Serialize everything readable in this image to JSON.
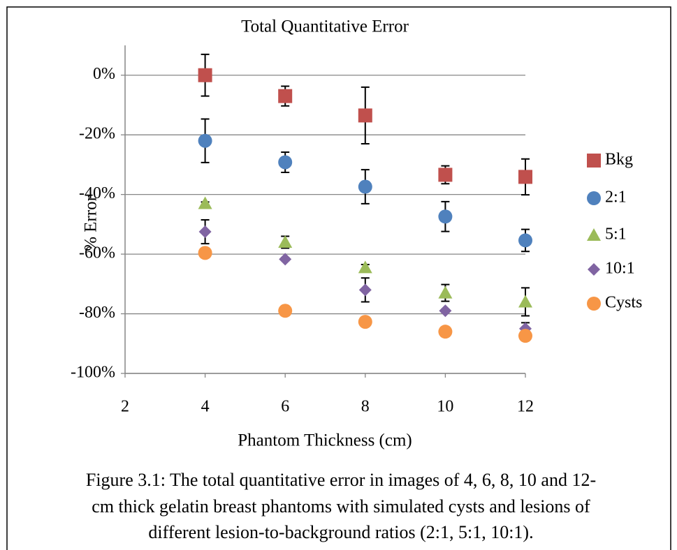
{
  "chart_data": {
    "type": "scatter",
    "title": "Total Quantitative Error",
    "xlabel": "Phantom Thickness (cm)",
    "ylabel": "% Error",
    "x": [
      4,
      6,
      8,
      10,
      12
    ],
    "xlim": [
      2,
      12
    ],
    "xticks": [
      2,
      4,
      6,
      8,
      10,
      12
    ],
    "ylim": [
      -100,
      10
    ],
    "yticks": [
      {
        "value": 0,
        "label": "0%"
      },
      {
        "value": -20,
        "label": "-20%"
      },
      {
        "value": -40,
        "label": "-40%"
      },
      {
        "value": -60,
        "label": "-60%"
      },
      {
        "value": -80,
        "label": "-80%"
      },
      {
        "value": -100,
        "label": "-100%"
      }
    ],
    "grid": true,
    "legend": "right",
    "series": [
      {
        "name": "Bkg",
        "color": "#c0504d",
        "marker": "square",
        "values": [
          0,
          -7,
          -13.5,
          -33.4,
          -34.1
        ],
        "errors": [
          7,
          3.3,
          9.5,
          3,
          6
        ]
      },
      {
        "name": "2:1",
        "color": "#4f81bd",
        "marker": "circle",
        "values": [
          -22,
          -29.2,
          -37.4,
          -47.4,
          -55.4
        ],
        "errors": [
          7.3,
          3.4,
          5.7,
          5,
          3.7
        ]
      },
      {
        "name": "5:1",
        "color": "#9bbb59",
        "marker": "triangle",
        "values": [
          -43,
          -56,
          -64.5,
          -73,
          -76
        ],
        "errors": [
          0.5,
          2,
          1,
          2.8,
          4.7
        ]
      },
      {
        "name": "10:1",
        "color": "#8064a2",
        "marker": "diamond",
        "values": [
          -52.5,
          -61.7,
          -72,
          -79,
          -85
        ],
        "errors": [
          4,
          0.5,
          4,
          0.5,
          2
        ]
      },
      {
        "name": "Cysts",
        "color": "#f79646",
        "marker": "circle",
        "values": [
          -59.6,
          -79,
          -82.7,
          -86,
          -87.4
        ],
        "errors": [
          0.5,
          0.5,
          0.5,
          0.5,
          0.5
        ]
      }
    ],
    "caption": [
      "Figure 3.1: The total quantitative error in images of 4, 6, 8, 10 and 12-",
      "cm thick gelatin breast phantoms with simulated cysts and lesions of",
      "different lesion-to-background ratios (2:1, 5:1, 10:1)."
    ]
  }
}
